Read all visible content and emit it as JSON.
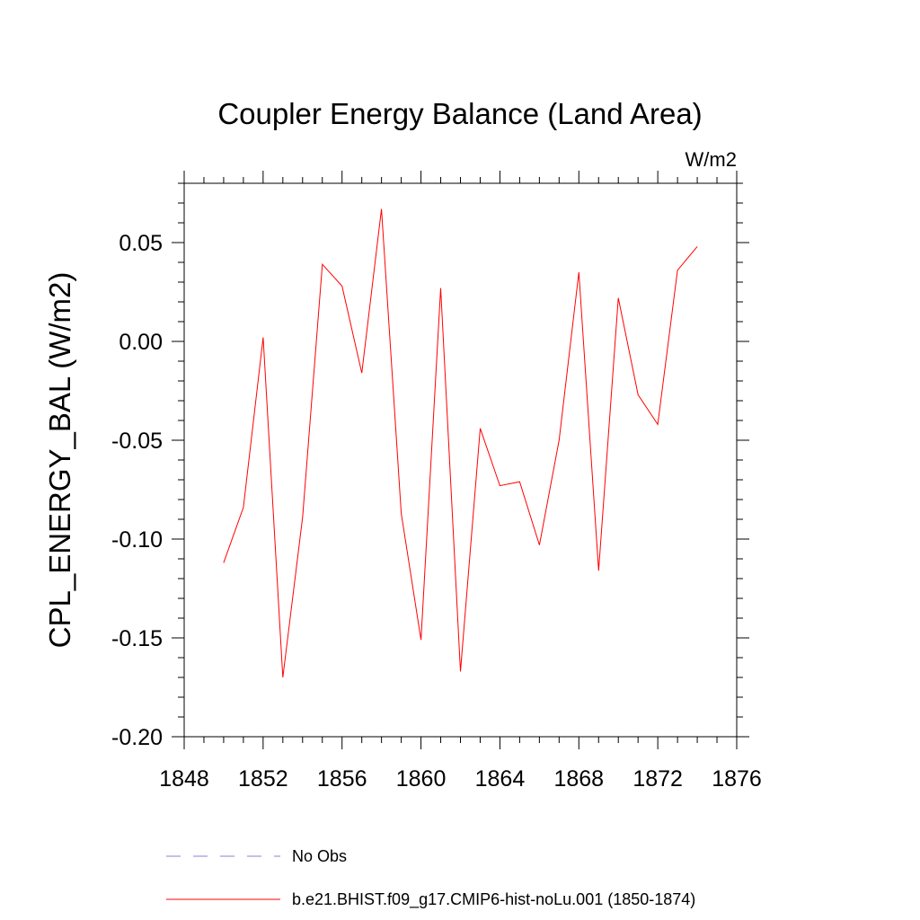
{
  "chart_data": {
    "type": "line",
    "title": "Coupler Energy Balance (Land Area)",
    "units_label": "W/m2",
    "ylabel": "CPL_ENERGY_BAL  (W/m2)",
    "xlabel": "",
    "xlim": [
      1848,
      1876
    ],
    "ylim": [
      -0.2,
      0.08
    ],
    "xticks": [
      1848,
      1852,
      1856,
      1860,
      1864,
      1868,
      1872,
      1876
    ],
    "yticks": [
      -0.2,
      -0.15,
      -0.1,
      -0.05,
      0.0,
      0.05
    ],
    "ytick_labels": [
      "-0.20",
      "-0.15",
      "-0.10",
      "-0.05",
      "0.00",
      "0.05"
    ],
    "grid": false,
    "legend_position": "bottom",
    "series": [
      {
        "name": "b.e21.BHIST.f09_g17.CMIP6-hist-noLu.001 (1850-1874)",
        "color": "#ff0000",
        "style": "solid",
        "x": [
          1850,
          1851,
          1852,
          1853,
          1854,
          1855,
          1856,
          1857,
          1858,
          1859,
          1860,
          1861,
          1862,
          1863,
          1864,
          1865,
          1866,
          1867,
          1868,
          1869,
          1870,
          1871,
          1872,
          1873,
          1874
        ],
        "values": [
          -0.112,
          -0.084,
          0.002,
          -0.17,
          -0.089,
          0.039,
          0.028,
          -0.016,
          0.067,
          -0.087,
          -0.151,
          0.027,
          -0.167,
          -0.044,
          -0.073,
          -0.071,
          -0.103,
          -0.05,
          0.035,
          -0.116,
          0.022,
          -0.027,
          -0.042,
          0.036,
          0.048
        ]
      }
    ],
    "legend": [
      {
        "label": "No Obs",
        "color": "#8a7fd0",
        "style": "dashed"
      },
      {
        "label": "b.e21.BHIST.f09_g17.CMIP6-hist-noLu.001 (1850-1874)",
        "color": "#ff0000",
        "style": "solid"
      }
    ]
  }
}
